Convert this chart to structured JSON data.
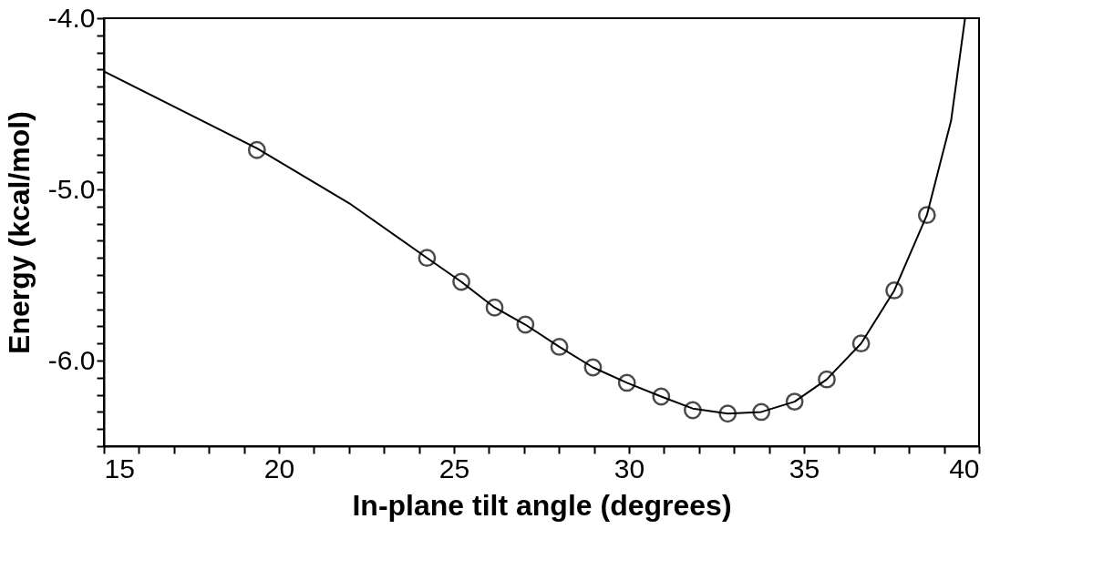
{
  "chart_data": {
    "type": "scatter",
    "xlabel": "In-plane tilt angle (degrees)",
    "ylabel": "Energy (kcal/mol)",
    "xlim": [
      15,
      40
    ],
    "ylim": [
      -6.5,
      -4.0
    ],
    "xticks": [
      15,
      {
        "value": 16,
        "label": null
      },
      {
        "value": 17,
        "label": null
      },
      {
        "value": 18,
        "label": null
      },
      {
        "value": 19,
        "label": null
      },
      20,
      {
        "value": 21,
        "label": null
      },
      {
        "value": 22,
        "label": null
      },
      {
        "value": 23,
        "label": null
      },
      {
        "value": 24,
        "label": null
      },
      25,
      {
        "value": 26,
        "label": null
      },
      {
        "value": 27,
        "label": null
      },
      {
        "value": 28,
        "label": null
      },
      {
        "value": 29,
        "label": null
      },
      30,
      {
        "value": 31,
        "label": null
      },
      {
        "value": 32,
        "label": null
      },
      {
        "value": 33,
        "label": null
      },
      {
        "value": 34,
        "label": null
      },
      35,
      {
        "value": 36,
        "label": null
      },
      {
        "value": 37,
        "label": null
      },
      {
        "value": 38,
        "label": null
      },
      {
        "value": 39,
        "label": null
      },
      40
    ],
    "yticks": [
      {
        "value": -6.5,
        "label": null
      },
      {
        "value": -6.4,
        "label": null
      },
      {
        "value": -6.3,
        "label": null
      },
      {
        "value": -6.2,
        "label": null
      },
      {
        "value": -6.1,
        "label": null
      },
      {
        "value": -6.0,
        "label": "-6.0"
      },
      {
        "value": -5.9,
        "label": null
      },
      {
        "value": -5.8,
        "label": null
      },
      {
        "value": -5.7,
        "label": null
      },
      {
        "value": -5.6,
        "label": null
      },
      {
        "value": -5.5,
        "label": null
      },
      {
        "value": -5.4,
        "label": null
      },
      {
        "value": -5.3,
        "label": null
      },
      {
        "value": -5.2,
        "label": null
      },
      {
        "value": -5.1,
        "label": null
      },
      {
        "value": -5.0,
        "label": "-5.0"
      },
      {
        "value": -4.9,
        "label": null
      },
      {
        "value": -4.8,
        "label": null
      },
      {
        "value": -4.7,
        "label": null
      },
      {
        "value": -4.6,
        "label": null
      },
      {
        "value": -4.5,
        "label": null
      },
      {
        "value": -4.4,
        "label": null
      },
      {
        "value": -4.3,
        "label": null
      },
      {
        "value": -4.2,
        "label": null
      },
      {
        "value": -4.1,
        "label": null
      },
      {
        "value": -4.0,
        "label": "-4.0"
      }
    ],
    "grid": false,
    "series": [
      {
        "type": "line",
        "color": "#000000",
        "marker": "none",
        "line_style": "solid",
        "x": [
          15,
          19.37,
          22,
          24.23,
          25.21,
          26.16,
          27.04,
          28.01,
          28.97,
          29.94,
          30.92,
          31.82,
          32.82,
          33.78,
          34.73,
          35.65,
          36.63,
          37.58,
          38.51,
          39.2,
          39.6
        ],
        "values": [
          -4.31,
          -4.76,
          -5.08,
          -5.4,
          -5.54,
          -5.69,
          -5.79,
          -5.92,
          -6.04,
          -6.13,
          -6.21,
          -6.28,
          -6.31,
          -6.3,
          -6.24,
          -6.11,
          -5.9,
          -5.59,
          -5.15,
          -4.6,
          -4.0
        ]
      },
      {
        "color": "#000000",
        "marker": "circle",
        "x": [
          19.37,
          24.23,
          25.21,
          26.16,
          27.04,
          28.01,
          28.97,
          29.94,
          30.92,
          31.82,
          32.82,
          33.78,
          34.73,
          35.65,
          36.63,
          37.58,
          38.51
        ],
        "values": [
          -4.77,
          -5.4,
          -5.54,
          -5.69,
          -5.79,
          -5.92,
          -6.04,
          -6.13,
          -6.21,
          -6.29,
          -6.31,
          -6.3,
          -6.24,
          -6.11,
          -5.9,
          -5.59,
          -5.15
        ]
      }
    ]
  }
}
